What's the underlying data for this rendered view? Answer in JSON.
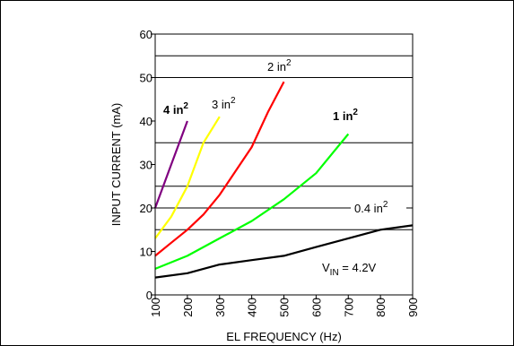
{
  "chart_data": {
    "type": "line",
    "xlabel": "EL FREQUENCY (Hz)",
    "ylabel": "INPUT CURRENT (mA)",
    "xlim": [
      100,
      900
    ],
    "ylim": [
      0,
      60
    ],
    "x_ticks": [
      "100",
      "200",
      "300",
      "400",
      "500",
      "600",
      "700",
      "800",
      "900"
    ],
    "y_ticks": [
      "0",
      "10",
      "20",
      "30",
      "40",
      "50",
      "60"
    ],
    "gridlines_y": [
      15,
      20,
      25,
      35,
      50,
      55
    ],
    "annotation": {
      "prefix": "V",
      "sub": "IN",
      "suffix": " = 4.2V"
    },
    "series": [
      {
        "name": "4 in",
        "sup": "2",
        "color": "#800080",
        "bold": true,
        "x": [
          100,
          150,
          200
        ],
        "y": [
          20,
          30,
          40
        ]
      },
      {
        "name": "3 in",
        "sup": "2",
        "color": "#ffff00",
        "bold": false,
        "x": [
          100,
          150,
          200,
          250,
          300
        ],
        "y": [
          13,
          18,
          25,
          35,
          41
        ]
      },
      {
        "name": "2 in",
        "sup": "2",
        "color": "#ff0000",
        "bold": false,
        "x": [
          100,
          150,
          200,
          250,
          300,
          350,
          400,
          450,
          500
        ],
        "y": [
          9,
          12,
          15,
          18.5,
          23,
          28.5,
          34,
          42,
          49
        ]
      },
      {
        "name": "1 in",
        "sup": "2",
        "color": "#00ff00",
        "bold": true,
        "x": [
          100,
          200,
          300,
          400,
          500,
          600,
          700
        ],
        "y": [
          6,
          9,
          13,
          17,
          22,
          28,
          37
        ]
      },
      {
        "name": "0.4 in",
        "sup": "2",
        "color": "#000000",
        "bold": false,
        "x": [
          100,
          200,
          300,
          400,
          500,
          600,
          700,
          800,
          900
        ],
        "y": [
          4,
          5,
          7,
          8,
          9,
          11,
          13,
          15,
          16
        ]
      }
    ]
  }
}
